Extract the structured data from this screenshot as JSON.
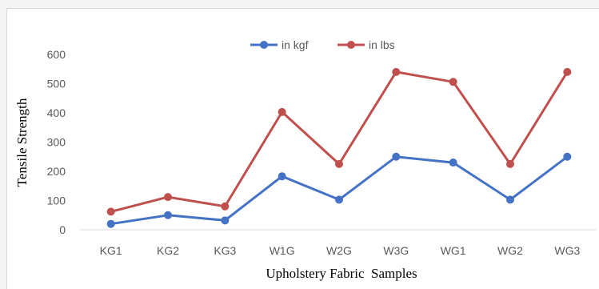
{
  "chart_data": {
    "type": "line",
    "title": "",
    "xlabel": "Upholstery Fabric  Samples",
    "ylabel": "Tensile Strength",
    "ylim": [
      0,
      600
    ],
    "yticks": [
      0,
      100,
      200,
      300,
      400,
      500,
      600
    ],
    "grid": false,
    "legend_position": "top",
    "categories": [
      "KG1",
      "KG2",
      "KG3",
      "W1G",
      "W2G",
      "W3G",
      "WG1",
      "WG2",
      "WG3"
    ],
    "series": [
      {
        "name": "in kgf",
        "color": "#4472c4",
        "values": [
          20,
          50,
          32,
          183,
          103,
          250,
          230,
          103,
          250
        ]
      },
      {
        "name": "in lbs",
        "color": "#c0504d",
        "values": [
          62,
          112,
          80,
          403,
          225,
          540,
          506,
          225,
          540
        ]
      }
    ]
  }
}
